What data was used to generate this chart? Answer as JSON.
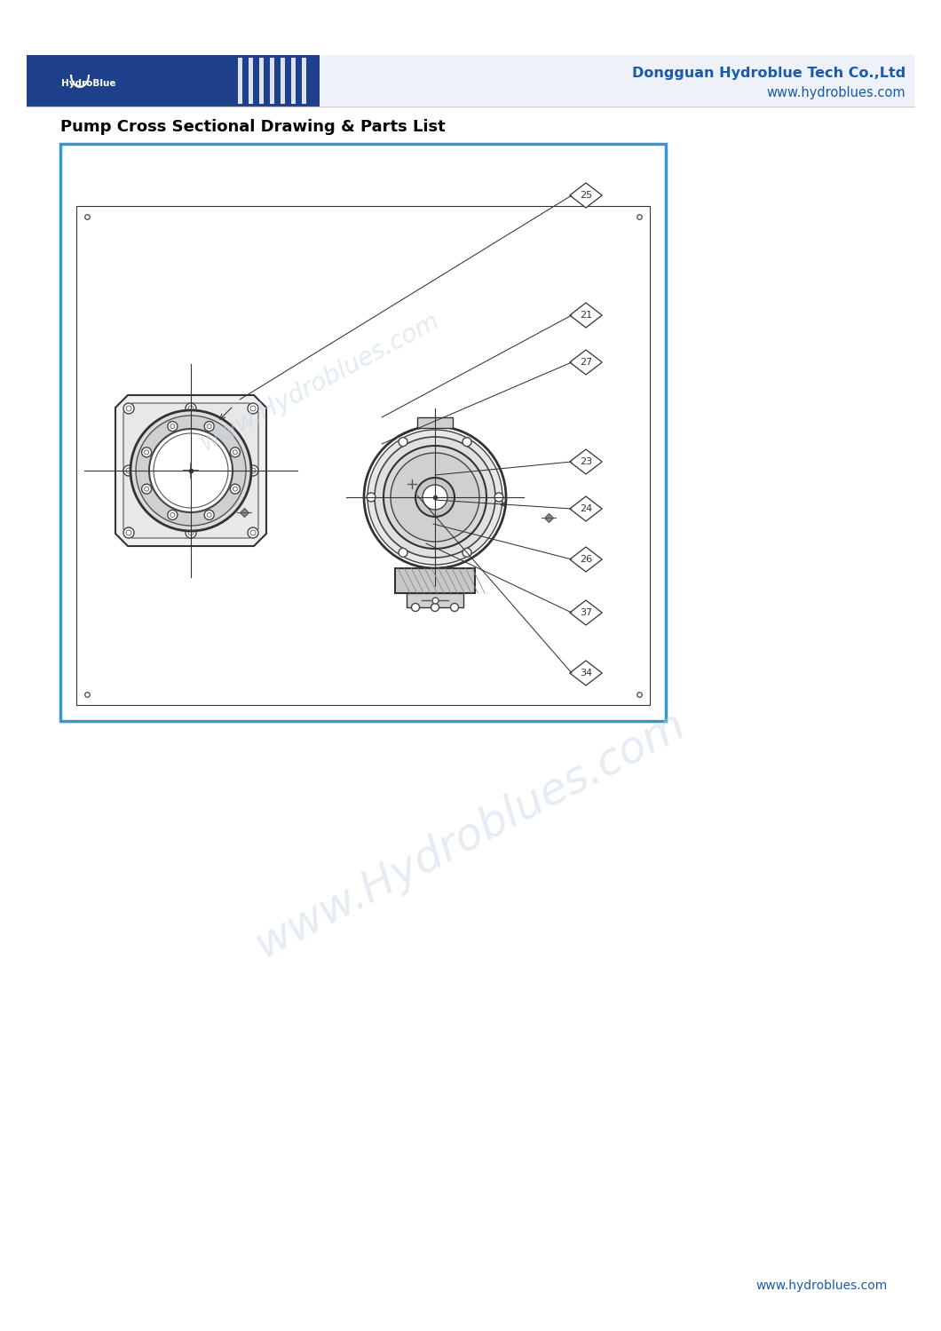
{
  "page_bg": "#ffffff",
  "header_bg": "#1a3a8c",
  "header_text": "Dongguan Hydroblue Tech Co.,Ltd",
  "header_url": "www.hydroblues.com",
  "header_text_color": "#1a5aaa",
  "section_title": "Pump Cross Sectional Drawing & Parts List",
  "section_title_color": "#000000",
  "section_title_fontsize": 13,
  "watermark_color": "#c5d5e5",
  "footer_url": "www.hydroblues.com",
  "footer_color": "#1a5aaa",
  "diagram_border_color": "#3399cc",
  "diagram_border_lw": 2.5,
  "part_annotations": [
    [
      "25",
      660,
      220,
      270,
      450
    ],
    [
      "21",
      660,
      355,
      430,
      470
    ],
    [
      "27",
      660,
      408,
      430,
      500
    ],
    [
      "23",
      660,
      520,
      490,
      535
    ],
    [
      "24",
      660,
      573,
      490,
      563
    ],
    [
      "26",
      660,
      630,
      488,
      590
    ],
    [
      "37",
      660,
      690,
      480,
      612
    ],
    [
      "34",
      660,
      758,
      470,
      558
    ]
  ]
}
